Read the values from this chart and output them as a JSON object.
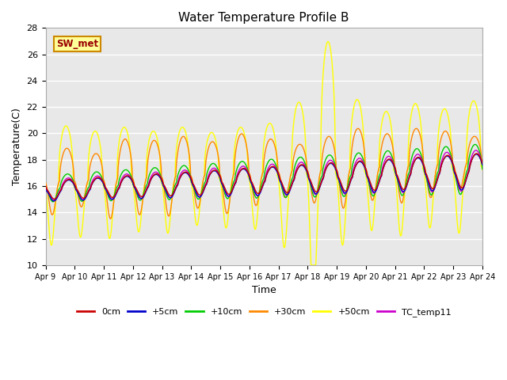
{
  "title": "Water Temperature Profile B",
  "xlabel": "Time",
  "ylabel": "Temperature(C)",
  "ylim": [
    10,
    28
  ],
  "yticks": [
    10,
    12,
    14,
    16,
    18,
    20,
    22,
    24,
    26,
    28
  ],
  "xtick_labels": [
    "Apr 9",
    "Apr 10",
    "Apr 11",
    "Apr 12",
    "Apr 13",
    "Apr 14",
    "Apr 15",
    "Apr 16",
    "Apr 17",
    "Apr 18",
    "Apr 19",
    "Apr 20",
    "Apr 21",
    "Apr 22",
    "Apr 23",
    "Apr 24"
  ],
  "series_colors": {
    "0cm": "#cc0000",
    "+5cm": "#0000cc",
    "+10cm": "#00cc00",
    "+30cm": "#ff8800",
    "+50cm": "#ffff00",
    "TC_temp11": "#cc00cc"
  },
  "legend_label": "SW_met",
  "legend_box_color": "#ffff99",
  "legend_box_edge": "#cc8800",
  "plot_bg_color": "#e8e8e8",
  "grid_color": "#ffffff",
  "figsize": [
    6.4,
    4.8
  ],
  "dpi": 100
}
